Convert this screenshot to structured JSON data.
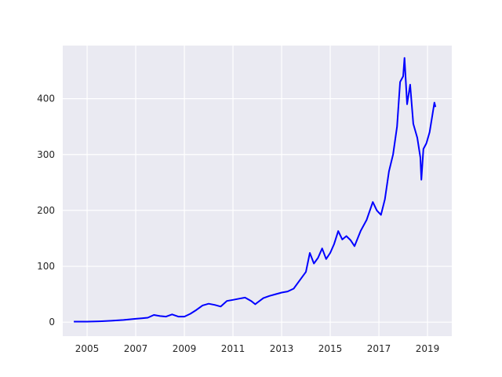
{
  "chart_data": {
    "type": "line",
    "title": "",
    "xlabel": "",
    "ylabel": "",
    "x_axis_type": "date",
    "xlim": [
      "2004-01-01",
      "2020-01-01"
    ],
    "ylim": [
      -25,
      495
    ],
    "grid": true,
    "legend": "none",
    "x_ticks": [
      {
        "value": "2005-01-01",
        "label": "2005"
      },
      {
        "value": "2007-01-01",
        "label": "2007"
      },
      {
        "value": "2009-01-01",
        "label": "2009"
      },
      {
        "value": "2011-01-01",
        "label": "2011"
      },
      {
        "value": "2013-01-01",
        "label": "2013"
      },
      {
        "value": "2015-01-01",
        "label": "2015"
      },
      {
        "value": "2017-01-01",
        "label": "2017"
      },
      {
        "value": "2019-01-01",
        "label": "2019"
      }
    ],
    "y_ticks": [
      {
        "value": 0,
        "label": "0"
      },
      {
        "value": 100,
        "label": "100"
      },
      {
        "value": 200,
        "label": "200"
      },
      {
        "value": 300,
        "label": "300"
      },
      {
        "value": 400,
        "label": "400"
      }
    ],
    "series": [
      {
        "color": "#0000ff",
        "points": [
          [
            "2004-06-15",
            1
          ],
          [
            "2005-01-01",
            1
          ],
          [
            "2005-07-01",
            1.5
          ],
          [
            "2006-01-01",
            2.5
          ],
          [
            "2006-07-01",
            4
          ],
          [
            "2007-01-01",
            6
          ],
          [
            "2007-04-01",
            7
          ],
          [
            "2007-07-01",
            8
          ],
          [
            "2007-10-01",
            13
          ],
          [
            "2008-01-01",
            11
          ],
          [
            "2008-04-01",
            10
          ],
          [
            "2008-07-01",
            14
          ],
          [
            "2008-10-01",
            10
          ],
          [
            "2009-01-01",
            10
          ],
          [
            "2009-04-01",
            15
          ],
          [
            "2009-07-01",
            22
          ],
          [
            "2009-10-01",
            30
          ],
          [
            "2010-01-01",
            33
          ],
          [
            "2010-04-01",
            31
          ],
          [
            "2010-07-01",
            28
          ],
          [
            "2010-10-01",
            38
          ],
          [
            "2011-01-01",
            40
          ],
          [
            "2011-04-01",
            42
          ],
          [
            "2011-07-01",
            44
          ],
          [
            "2011-10-01",
            38
          ],
          [
            "2011-12-01",
            32
          ],
          [
            "2012-01-01",
            35
          ],
          [
            "2012-04-01",
            43
          ],
          [
            "2012-07-01",
            47
          ],
          [
            "2012-10-01",
            50
          ],
          [
            "2013-01-01",
            53
          ],
          [
            "2013-04-01",
            55
          ],
          [
            "2013-07-01",
            60
          ],
          [
            "2013-10-01",
            75
          ],
          [
            "2014-01-01",
            90
          ],
          [
            "2014-03-01",
            124
          ],
          [
            "2014-05-01",
            105
          ],
          [
            "2014-07-01",
            115
          ],
          [
            "2014-09-01",
            132
          ],
          [
            "2014-11-01",
            113
          ],
          [
            "2015-01-01",
            124
          ],
          [
            "2015-03-01",
            140
          ],
          [
            "2015-05-01",
            163
          ],
          [
            "2015-07-01",
            148
          ],
          [
            "2015-09-01",
            154
          ],
          [
            "2015-11-01",
            147
          ],
          [
            "2016-01-01",
            136
          ],
          [
            "2016-04-01",
            163
          ],
          [
            "2016-07-01",
            183
          ],
          [
            "2016-10-01",
            215
          ],
          [
            "2016-12-01",
            200
          ],
          [
            "2017-02-01",
            192
          ],
          [
            "2017-04-01",
            220
          ],
          [
            "2017-06-01",
            270
          ],
          [
            "2017-08-01",
            300
          ],
          [
            "2017-10-01",
            350
          ],
          [
            "2017-11-15",
            430
          ],
          [
            "2018-01-01",
            440
          ],
          [
            "2018-01-20",
            473
          ],
          [
            "2018-03-01",
            390
          ],
          [
            "2018-04-15",
            425
          ],
          [
            "2018-06-01",
            355
          ],
          [
            "2018-08-01",
            330
          ],
          [
            "2018-09-15",
            295
          ],
          [
            "2018-10-01",
            255
          ],
          [
            "2018-11-01",
            310
          ],
          [
            "2018-12-15",
            320
          ],
          [
            "2019-02-01",
            340
          ],
          [
            "2019-03-15",
            370
          ],
          [
            "2019-04-15",
            393
          ],
          [
            "2019-05-01",
            385
          ]
        ]
      }
    ]
  }
}
